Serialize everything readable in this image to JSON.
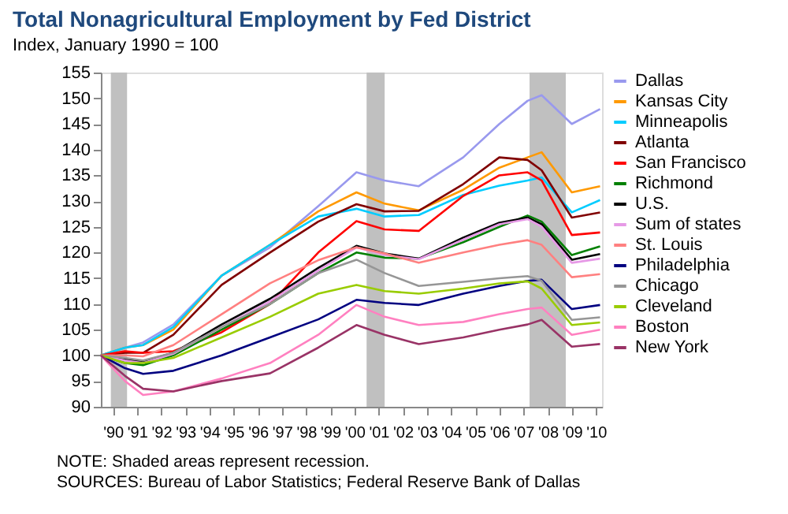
{
  "chart_data": {
    "type": "line",
    "title": "Total Nonagricultural Employment by Fed District",
    "subtitle": "Index, January 1990 = 100",
    "x": [
      "1990-01",
      "1991-01",
      "1991-10",
      "1993-01",
      "1995-01",
      "1997-01",
      "1999-01",
      "2000-08",
      "2001-10",
      "2003-03",
      "2005-01",
      "2006-07",
      "2007-09",
      "2008-04",
      "2009-07",
      "2010-09"
    ],
    "series": [
      {
        "name": "Dallas",
        "color": "#9999ee",
        "values": [
          100,
          101.5,
          102.5,
          106,
          115.5,
          121,
          129,
          135.6,
          134,
          132.9,
          138.5,
          145,
          149.5,
          150.6,
          145,
          147.9
        ]
      },
      {
        "name": "Kansas City",
        "color": "#ff9900",
        "values": [
          100,
          101.5,
          102,
          105,
          115.5,
          121.5,
          128,
          131.7,
          129.5,
          128.2,
          132.2,
          136.5,
          138.5,
          139.5,
          131.7,
          132.9
        ]
      },
      {
        "name": "Minneapolis",
        "color": "#00ccff",
        "values": [
          100,
          101.5,
          102,
          105.5,
          115.5,
          121.5,
          127,
          128.5,
          127,
          127.3,
          131.2,
          133,
          134,
          134.6,
          127.8,
          130.2
        ]
      },
      {
        "name": "Atlanta",
        "color": "#800000",
        "values": [
          100,
          100.5,
          100.5,
          104,
          113.7,
          120,
          126,
          129.4,
          128,
          128.1,
          133.3,
          138.5,
          138,
          136,
          126.8,
          127.8
        ]
      },
      {
        "name": "San Francisco",
        "color": "#ff0000",
        "values": [
          100,
          100.8,
          100.5,
          100.8,
          104.5,
          110,
          120,
          126.1,
          124.5,
          124.2,
          131,
          135,
          135.6,
          134,
          123.4,
          123.9
        ]
      },
      {
        "name": "Richmond",
        "color": "#008000",
        "values": [
          100,
          98.5,
          98.1,
          100,
          105,
          110,
          116,
          120,
          119,
          118.8,
          122,
          125,
          127.2,
          126,
          119.5,
          121.2
        ]
      },
      {
        "name": "U.S.",
        "color": "#000000",
        "values": [
          100,
          99.2,
          98.8,
          100.5,
          106,
          111,
          117,
          121.3,
          119.8,
          118.8,
          122.9,
          125.8,
          126.8,
          125.5,
          118.6,
          119.7
        ]
      },
      {
        "name": "Sum of states",
        "color": "#e699e6",
        "values": [
          100,
          99,
          98.5,
          100.3,
          105.5,
          110.5,
          116.5,
          121,
          119.5,
          118.7,
          122.5,
          125.5,
          126.5,
          125,
          118,
          118.8
        ]
      },
      {
        "name": "St. Louis",
        "color": "#ff8080",
        "values": [
          100,
          100,
          99.8,
          102,
          108,
          114,
          118.5,
          121,
          119.8,
          118,
          120,
          121.5,
          122.4,
          121.5,
          115.2,
          115.8
        ]
      },
      {
        "name": "Philadelphia",
        "color": "#000080",
        "values": [
          100,
          97.5,
          96.4,
          97,
          100,
          103.5,
          107,
          110.8,
          110.2,
          109.8,
          112,
          113.5,
          114.5,
          114.7,
          109,
          109.8
        ]
      },
      {
        "name": "Chicago",
        "color": "#969696",
        "values": [
          100,
          99.5,
          99,
          100.5,
          105.5,
          110,
          116,
          118.6,
          116,
          113.5,
          114.3,
          115,
          115.4,
          114.5,
          106.9,
          107.4
        ]
      },
      {
        "name": "Cleveland",
        "color": "#99cc00",
        "values": [
          100,
          98.5,
          98.5,
          99.5,
          103.5,
          107.5,
          112,
          113.7,
          112.5,
          112,
          113,
          114,
          114.4,
          113,
          105.9,
          106.4
        ]
      },
      {
        "name": "Boston",
        "color": "#ff80c0",
        "values": [
          100,
          95,
          92.3,
          93,
          95.5,
          98.5,
          104,
          109.8,
          107.5,
          105.9,
          106.5,
          108,
          109,
          109.3,
          104,
          105
        ]
      },
      {
        "name": "New York",
        "color": "#993366",
        "values": [
          100,
          96,
          93.5,
          93,
          95,
          96.5,
          101.5,
          105.9,
          104,
          102.2,
          103.5,
          105,
          106,
          106.9,
          101.7,
          102.2
        ]
      }
    ],
    "xlim": [
      "1990-01",
      "2010-10"
    ],
    "xticks": [
      {
        "value": "1990-07",
        "label": "'90"
      },
      {
        "value": "1991-07",
        "label": "'91"
      },
      {
        "value": "1992-07",
        "label": "'92"
      },
      {
        "value": "1993-07",
        "label": "'93"
      },
      {
        "value": "1994-07",
        "label": "'94"
      },
      {
        "value": "1995-07",
        "label": "'95"
      },
      {
        "value": "1996-07",
        "label": "'96"
      },
      {
        "value": "1997-07",
        "label": "'97"
      },
      {
        "value": "1998-07",
        "label": "'98"
      },
      {
        "value": "1999-07",
        "label": "'99"
      },
      {
        "value": "2000-07",
        "label": "'00"
      },
      {
        "value": "2001-07",
        "label": "'01"
      },
      {
        "value": "2002-07",
        "label": "'02"
      },
      {
        "value": "2003-07",
        "label": "'03"
      },
      {
        "value": "2004-07",
        "label": "'04"
      },
      {
        "value": "2005-07",
        "label": "'05"
      },
      {
        "value": "2006-07",
        "label": "'06"
      },
      {
        "value": "2007-07",
        "label": "'07"
      },
      {
        "value": "2008-07",
        "label": "'08"
      },
      {
        "value": "2009-07",
        "label": "'09"
      },
      {
        "value": "2010-07",
        "label": "'10"
      }
    ],
    "ylim": [
      90,
      155
    ],
    "yticks": [
      90,
      95,
      100,
      105,
      110,
      115,
      120,
      125,
      130,
      135,
      140,
      145,
      150,
      155
    ],
    "bands": [
      {
        "axis": "x",
        "from": "1990-06",
        "to": "1991-02",
        "color": "#c0c0c0"
      },
      {
        "axis": "x",
        "from": "2001-01",
        "to": "2001-10",
        "color": "#c0c0c0"
      },
      {
        "axis": "x",
        "from": "2007-10",
        "to": "2009-04",
        "color": "#c0c0c0"
      }
    ],
    "grid": false,
    "legend": "right",
    "line_style": "solid",
    "annotations": [
      "NOTE: Shaded areas represent recession.",
      "SOURCES: Bureau of Labor Statistics; Federal Reserve Bank of Dallas"
    ]
  }
}
